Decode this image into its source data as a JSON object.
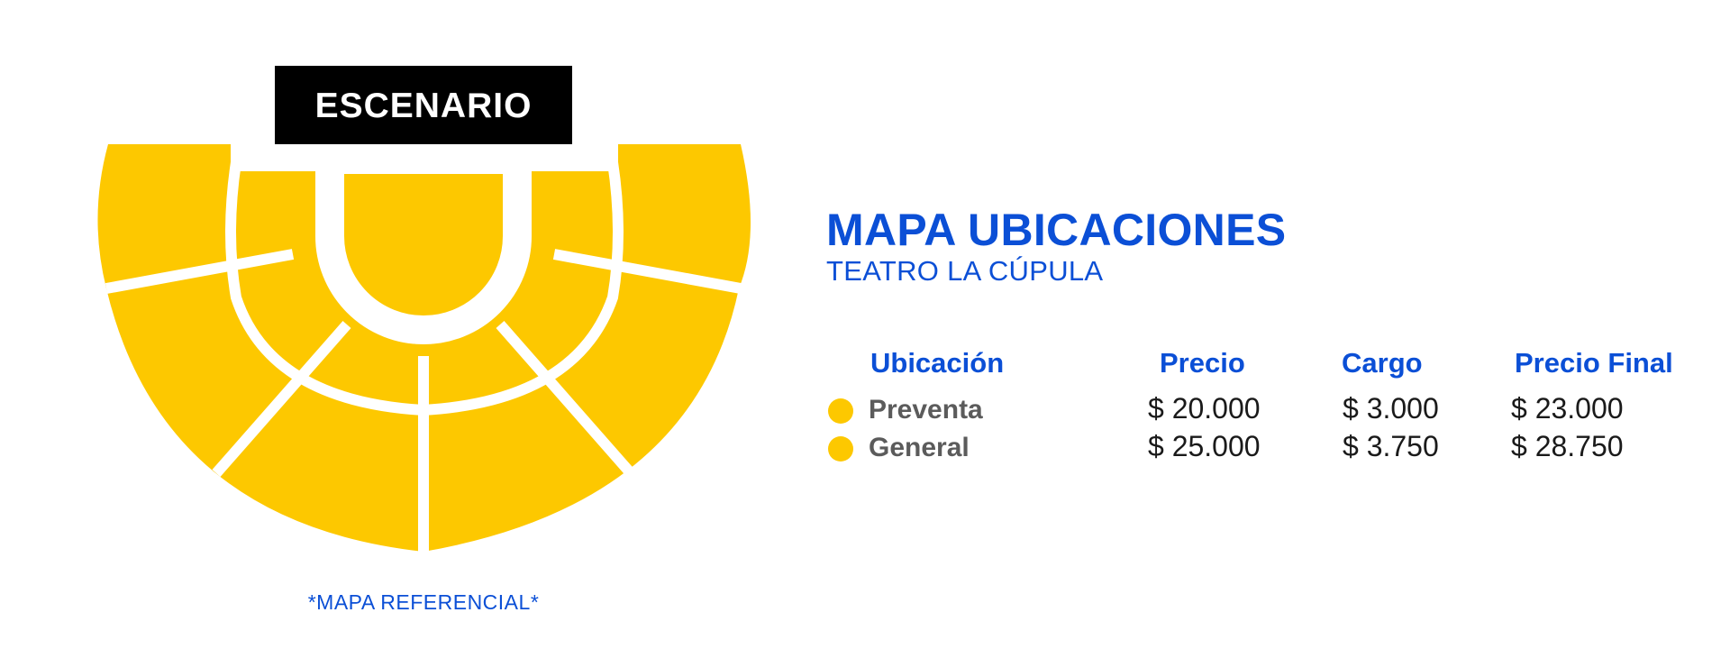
{
  "stage": {
    "label": "ESCENARIO"
  },
  "map_note": "*MAPA REFERENCIAL*",
  "title": "MAPA UBICACIONES",
  "subtitle": "TEATRO LA CÚPULA",
  "colors": {
    "seat": "#fdc800",
    "stage": "#000000",
    "accent": "#0b4fd6",
    "gap": "#ffffff"
  },
  "table": {
    "headers": {
      "location": "Ubicación",
      "price": "Precio",
      "fee": "Cargo",
      "final": "Precio Final"
    },
    "rows": [
      {
        "location": "Preventa",
        "price": "$ 20.000",
        "fee": "$ 3.000",
        "final": "$ 23.000"
      },
      {
        "location": "General",
        "price": "$ 25.000",
        "fee": "$ 3.750",
        "final": "$ 28.750"
      }
    ]
  }
}
